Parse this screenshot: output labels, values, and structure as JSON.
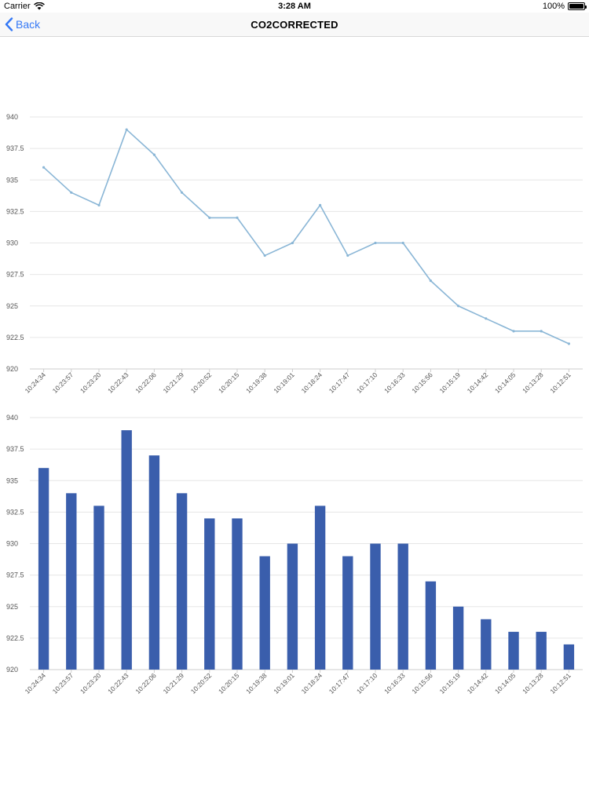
{
  "status_bar": {
    "carrier": "Carrier",
    "time": "3:28 AM",
    "battery_percent": "100%",
    "battery_level": 1.0
  },
  "nav": {
    "back_label": "Back",
    "title": "CO2CORRECTED"
  },
  "colors": {
    "accent": "#3478f6",
    "line": "#8ab6d6",
    "bar": "#3a5eac",
    "grid": "#e6e6e6",
    "axis_text": "#555555"
  },
  "chart_data": [
    {
      "type": "line",
      "categories": [
        "10:24:34",
        "10:23:57",
        "10:23:20",
        "10:22:43",
        "10:22:06",
        "10:21:29",
        "10:20:52",
        "10:20:15",
        "10:19:38",
        "10:19:01",
        "10:18:24",
        "10:17:47",
        "10:17:10",
        "10:16:33",
        "10:15:56",
        "10:15:19",
        "10:14:42",
        "10:14:05",
        "10:13:28",
        "10:12:51"
      ],
      "values": [
        936,
        934,
        933,
        939,
        937,
        934,
        932,
        932,
        929,
        930,
        933,
        929,
        930,
        930,
        927,
        925,
        924,
        923,
        923,
        922
      ],
      "yticks": [
        "920",
        "922.5",
        "925",
        "927.5",
        "930",
        "932.5",
        "935",
        "937.5",
        "940"
      ],
      "ylim": [
        920,
        940
      ],
      "grid": true,
      "legend": "none"
    },
    {
      "type": "bar",
      "categories": [
        "10:24:34",
        "10:23:57",
        "10:23:20",
        "10:22:43",
        "10:22:06",
        "10:21:29",
        "10:20:52",
        "10:20:15",
        "10:19:38",
        "10:19:01",
        "10:18:24",
        "10:17:47",
        "10:17:10",
        "10:16:33",
        "10:15:56",
        "10:15:19",
        "10:14:42",
        "10:14:05",
        "10:13:28",
        "10:12:51"
      ],
      "values": [
        936,
        934,
        933,
        939,
        937,
        934,
        932,
        932,
        929,
        930,
        933,
        929,
        930,
        930,
        927,
        925,
        924,
        923,
        923,
        922
      ],
      "yticks": [
        "920",
        "922.5",
        "925",
        "927.5",
        "930",
        "932.5",
        "935",
        "937.5",
        "940"
      ],
      "ylim": [
        920,
        940
      ],
      "grid": true,
      "legend": "none"
    }
  ]
}
